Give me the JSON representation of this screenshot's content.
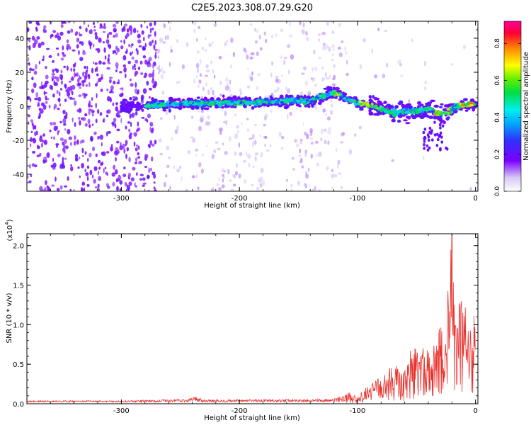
{
  "title": "C2E5.2023.308.07.29.G20",
  "chart_data": [
    {
      "type": "heatmap",
      "xlabel": "Height of straight line (km)",
      "ylabel": "Frequency (Hz)",
      "xlim": [
        -380,
        2
      ],
      "ylim": [
        -50,
        50
      ],
      "x_ticks": [
        -300,
        -200,
        -100,
        0
      ],
      "x_tick_labels": [
        "-300",
        "-200",
        "-100",
        "0"
      ],
      "y_ticks": [
        -40,
        -20,
        0,
        20,
        40
      ],
      "y_tick_labels": [
        "-40",
        "-20",
        "0",
        "20",
        "40"
      ],
      "colorbar": {
        "label": "Normalized spectral amplitude",
        "range": [
          0,
          0.92
        ],
        "ticks": [
          0.0,
          0.2,
          0.4,
          0.6,
          0.8
        ],
        "tick_labels": [
          "0.0",
          "0.2",
          "0.4",
          "0.6",
          "0.8"
        ]
      },
      "ridge": [
        {
          "x": -290,
          "y": 0
        },
        {
          "x": -260,
          "y": 1
        },
        {
          "x": -230,
          "y": 2
        },
        {
          "x": -200,
          "y": 2
        },
        {
          "x": -170,
          "y": 3
        },
        {
          "x": -140,
          "y": 3
        },
        {
          "x": -120,
          "y": 8
        },
        {
          "x": -110,
          "y": 5
        },
        {
          "x": -100,
          "y": 2
        },
        {
          "x": -85,
          "y": 0
        },
        {
          "x": -70,
          "y": -4
        },
        {
          "x": -55,
          "y": -3
        },
        {
          "x": -40,
          "y": -2
        },
        {
          "x": -28,
          "y": -5
        },
        {
          "x": -15,
          "y": 0
        },
        {
          "x": 0,
          "y": 1
        }
      ],
      "grid": false
    },
    {
      "type": "line",
      "xlabel": "Height of straight line (km)",
      "ylabel": "SNR (10 * v/v)",
      "y_multiplier": "(x10",
      "y_multiplier_exp": "4",
      "xlim": [
        -380,
        2
      ],
      "ylim": [
        0,
        2.15
      ],
      "x_ticks": [
        -300,
        -200,
        -100,
        0
      ],
      "x_tick_labels": [
        "-300",
        "-200",
        "-100",
        "0"
      ],
      "y_ticks": [
        0.0,
        0.5,
        1.0,
        1.5,
        2.0
      ],
      "y_tick_labels": [
        "0.0",
        "0.5",
        "1.0",
        "1.5",
        "2.0"
      ],
      "series": [
        {
          "color": "#e8322e",
          "envelope": [
            {
              "x": -380,
              "y": 0.03
            },
            {
              "x": -300,
              "y": 0.03
            },
            {
              "x": -245,
              "y": 0.05
            },
            {
              "x": -238,
              "y": 0.09
            },
            {
              "x": -230,
              "y": 0.04
            },
            {
              "x": -120,
              "y": 0.05
            },
            {
              "x": -108,
              "y": 0.15
            },
            {
              "x": -100,
              "y": 0.1
            },
            {
              "x": -90,
              "y": 0.25
            },
            {
              "x": -80,
              "y": 0.35
            },
            {
              "x": -70,
              "y": 0.5
            },
            {
              "x": -60,
              "y": 0.45
            },
            {
              "x": -55,
              "y": 0.7
            },
            {
              "x": -45,
              "y": 0.85
            },
            {
              "x": -38,
              "y": 0.6
            },
            {
              "x": -30,
              "y": 1.05
            },
            {
              "x": -26,
              "y": 0.8
            },
            {
              "x": -22,
              "y": 1.9
            },
            {
              "x": -20,
              "y": 2.15
            },
            {
              "x": -18,
              "y": 1.5
            },
            {
              "x": -12,
              "y": 1.3
            },
            {
              "x": -8,
              "y": 1.25
            },
            {
              "x": -4,
              "y": 1.0
            },
            {
              "x": 0,
              "y": 1.25
            }
          ]
        }
      ],
      "grid": false
    }
  ]
}
